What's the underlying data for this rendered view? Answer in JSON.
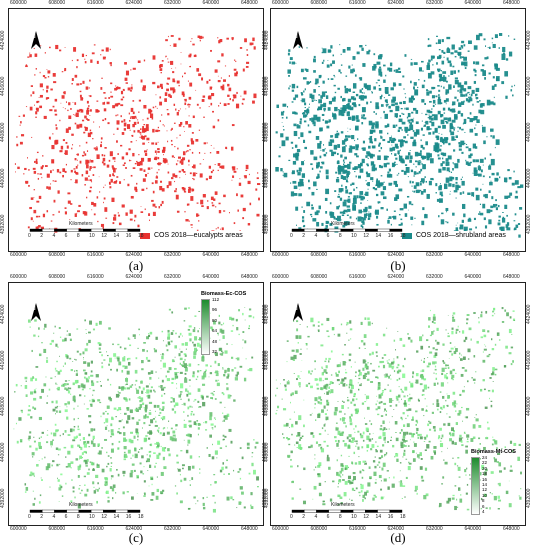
{
  "panels": [
    {
      "caption": "(a)",
      "x_ticks": [
        "600000",
        "608000",
        "616000",
        "624000",
        "632000",
        "640000",
        "648000"
      ],
      "y_ticks": [
        "4424000",
        "4416000",
        "4408000",
        "4400000",
        "4392000"
      ],
      "legend_label": "COS 2018—eucalypts areas",
      "color": "#e8312f",
      "scale_title": "Kilometers",
      "scale_ticks": [
        "0",
        "2",
        "4",
        "6",
        "8",
        "10",
        "12",
        "14",
        "16",
        "18"
      ]
    },
    {
      "caption": "(b)",
      "x_ticks": [
        "600000",
        "608000",
        "616000",
        "624000",
        "632000",
        "640000",
        "648000"
      ],
      "y_ticks": [
        "4424000",
        "4416000",
        "4408000",
        "4400000",
        "4392000"
      ],
      "legend_label": "COS 2018—shrubland areas",
      "color": "#1a8a8a",
      "scale_title": "Kilometers",
      "scale_ticks": [
        "0",
        "2",
        "4",
        "6",
        "8",
        "10",
        "12",
        "14",
        "16",
        "18"
      ]
    },
    {
      "caption": "(c)",
      "x_ticks": [
        "600000",
        "608000",
        "616000",
        "624000",
        "632000",
        "640000",
        "648000"
      ],
      "y_ticks": [
        "4424000",
        "4416000",
        "4408000",
        "4400000",
        "4392000"
      ],
      "legend_title": "Biomass-Ec-COS",
      "legend_values": [
        "112",
        "96",
        "80",
        "64",
        "48",
        "32"
      ],
      "color": "#2e9e3e",
      "scale_title": "Kilometers",
      "scale_ticks": [
        "0",
        "2",
        "4",
        "6",
        "8",
        "10",
        "12",
        "14",
        "16",
        "18"
      ]
    },
    {
      "caption": "(d)",
      "x_ticks": [
        "600000",
        "608000",
        "616000",
        "624000",
        "632000",
        "640000",
        "648000"
      ],
      "y_ticks": [
        "4424000",
        "4416000",
        "4408000",
        "4400000",
        "4392000"
      ],
      "legend_title": "Biomass-Mt-COS",
      "legend_values": [
        "24",
        "22",
        "20",
        "18",
        "16",
        "14",
        "12",
        "10",
        "8",
        "6",
        "4"
      ],
      "color": "#2e9e3e",
      "scale_title": "Kilometers",
      "scale_ticks": [
        "0",
        "2",
        "4",
        "6",
        "8",
        "10",
        "12",
        "14",
        "16",
        "18"
      ]
    }
  ],
  "north_label": "N"
}
